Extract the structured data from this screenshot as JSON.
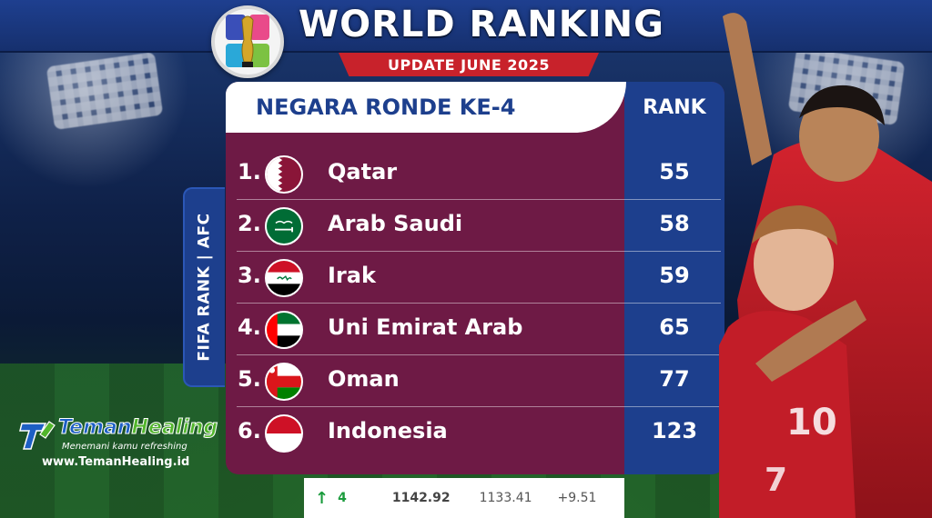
{
  "header": {
    "title": "WORLD RANKING",
    "subtitle": "UPDATE JUNE 2025",
    "logo_icon": "world-cup-2026-logo"
  },
  "table": {
    "heading": "NEGARA RONDE KE-4",
    "rank_heading": "RANK",
    "rows": [
      {
        "num": "1.",
        "country": "Qatar",
        "rank": "55",
        "flag": "qatar-flag-icon"
      },
      {
        "num": "2.",
        "country": "Arab Saudi",
        "rank": "58",
        "flag": "saudi-arabia-flag-icon"
      },
      {
        "num": "3.",
        "country": "Irak",
        "rank": "59",
        "flag": "iraq-flag-icon"
      },
      {
        "num": "4.",
        "country": "Uni Emirat Arab",
        "rank": "65",
        "flag": "uae-flag-icon"
      },
      {
        "num": "5.",
        "country": "Oman",
        "rank": "77",
        "flag": "oman-flag-icon"
      },
      {
        "num": "6.",
        "country": "Indonesia",
        "rank": "123",
        "flag": "indonesia-flag-icon"
      }
    ]
  },
  "side_tag": "FIFA RANK | AFC",
  "stats": {
    "arrow_icon": "up-arrow-icon",
    "change": "4",
    "points": "1142.92",
    "previous_points": "1133.41",
    "difference": "+9.51"
  },
  "brand": {
    "name_part1": "Teman",
    "name_part2": "Healing",
    "tagline": "Menemani kamu refreshing",
    "url": "www.TemanHealing.id"
  },
  "colors": {
    "header_blue": "#1d3f8d",
    "panel_maroon": "#6e1a45",
    "ribbon_red": "#c8222b",
    "up_green": "#1a9b3c"
  }
}
